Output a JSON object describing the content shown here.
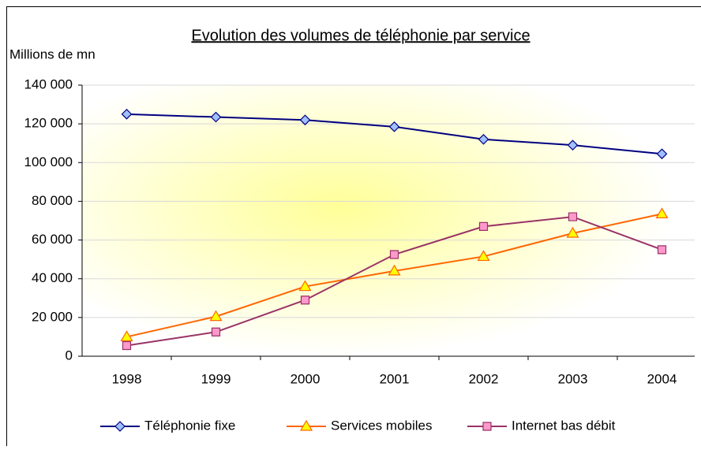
{
  "chart_data": {
    "type": "line",
    "title": "Evolution des volumes de téléphonie par service",
    "y_label": "Millions de mn",
    "categories": [
      "1998",
      "1999",
      "2000",
      "2001",
      "2002",
      "2003",
      "2004"
    ],
    "series": [
      {
        "name": "Téléphonie fixe",
        "color": "#000080",
        "marker": "diamond",
        "marker_fill": "#a0c0ff",
        "values": [
          125000,
          123500,
          122000,
          118500,
          112000,
          109000,
          104500
        ]
      },
      {
        "name": "Services mobiles",
        "color": "#ff6600",
        "marker": "triangle",
        "marker_fill": "#ffff00",
        "values": [
          10000,
          20500,
          36000,
          44000,
          51500,
          63500,
          73500
        ]
      },
      {
        "name": "Internet bas débit",
        "color": "#993366",
        "marker": "square",
        "marker_fill": "#ff99cc",
        "values": [
          5500,
          12500,
          29000,
          52500,
          67000,
          72000,
          55000
        ]
      }
    ],
    "ylim": [
      0,
      140000
    ],
    "yticks": [
      0,
      {
        "value": 20000,
        "label": "20 000"
      },
      {
        "value": 40000,
        "label": "40 000"
      },
      {
        "value": 60000,
        "label": "60 000"
      },
      {
        "value": 80000,
        "label": "80 000"
      },
      {
        "value": 100000,
        "label": "100 000"
      },
      {
        "value": 120000,
        "label": "120 000"
      },
      {
        "value": 140000,
        "label": "140 000"
      }
    ],
    "grid": true,
    "legend": "bottom"
  }
}
